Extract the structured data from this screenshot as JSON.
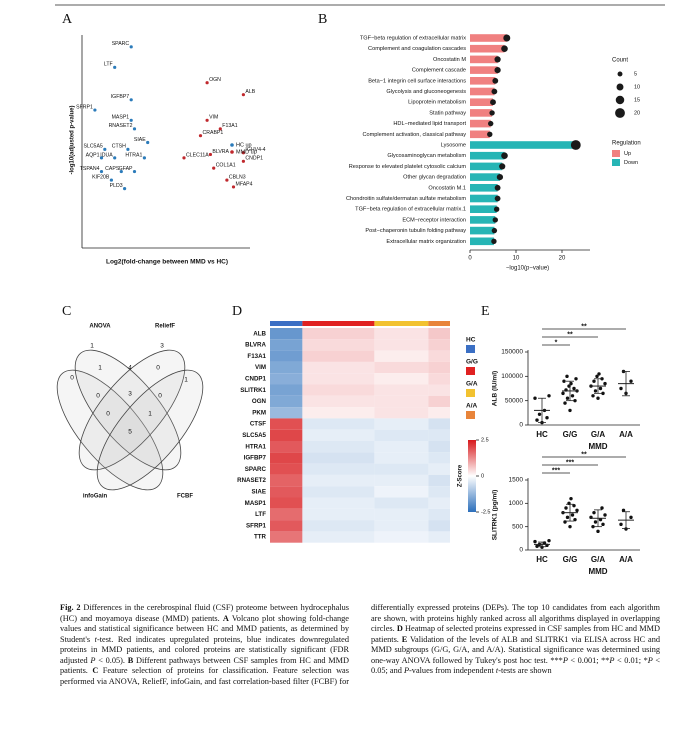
{
  "panel_a": {
    "letter": "A",
    "type": "scatter",
    "ylabel": "-log10(adjusted p-value)",
    "xlabel": "Log2(fold-change between MMD vs HC)",
    "xlim": [
      -2.5,
      2.5
    ],
    "ylim": [
      0,
      12
    ],
    "series": [
      {
        "name": "HC up",
        "color": "#2b7bba",
        "labels": [
          "SPARC",
          "LTF",
          "IGFBP7",
          "SFRP1",
          "MASP1",
          "RNASET2",
          "SIAE",
          "SLC5A5",
          "CTSH",
          "AQP1",
          "IDUA",
          "HTRA1",
          "TSPAN4",
          "CAPS",
          "GFAP",
          "KIF20B",
          "PLD3"
        ],
        "x": [
          -1.1,
          -1.6,
          -1.1,
          -2.2,
          -1.1,
          -1.0,
          -0.6,
          -1.9,
          -1.2,
          -2.0,
          -1.6,
          -0.7,
          -2.0,
          -1.4,
          -1.0,
          -1.7,
          -1.3
        ],
        "values": [
          11.6,
          10.4,
          8.5,
          7.9,
          7.3,
          6.8,
          6.0,
          5.6,
          5.6,
          5.1,
          5.1,
          5.1,
          4.3,
          4.3,
          4.3,
          3.8,
          3.3
        ]
      },
      {
        "name": "MMD up",
        "color": "#c0282d",
        "labels": [
          "OGN",
          "ALB",
          "VIM",
          "F13A1",
          "CRABP1",
          "CLEC11A",
          "BLVRA",
          "IGHV4-4",
          "CNDP1",
          "COL1A1",
          "CBLN3",
          "MFAP4"
        ],
        "x": [
          1.2,
          2.3,
          1.2,
          1.6,
          1.0,
          0.5,
          1.3,
          2.3,
          2.3,
          1.4,
          1.8,
          2.0
        ],
        "values": [
          9.5,
          8.8,
          7.3,
          6.8,
          6.4,
          5.1,
          5.3,
          5.4,
          4.9,
          4.5,
          3.8,
          3.4
        ]
      }
    ]
  },
  "panel_b": {
    "letter": "B",
    "type": "bar",
    "xlabel": "−log10(p−value)",
    "xlim": [
      0,
      25
    ],
    "xticks": [
      0,
      10,
      20
    ],
    "count_title": "Count",
    "count_ticks": [
      5,
      10,
      15,
      20
    ],
    "legend_title": "Regulation",
    "series": [
      {
        "name": "Up",
        "color": "#f08080",
        "categories": [
          "TGF−beta regulation of extracellular matrix",
          "Complement and coagulation cascades",
          "Oncostatin M",
          "Complement cascade",
          "Beta−1 integrin cell surface interactions",
          "Glycolysis and gluconeogenesis",
          "Lipoprotein metabolism",
          "Statin pathway",
          "HDL−mediated lipid transport",
          "Complement activation, classical pathway"
        ],
        "values": [
          8,
          7.5,
          6,
          6,
          5.5,
          5.3,
          5,
          4.8,
          4.5,
          4.3
        ],
        "counts": [
          10,
          9,
          8,
          8,
          7,
          7,
          7,
          6,
          6,
          6
        ]
      },
      {
        "name": "Down",
        "color": "#26b5b5",
        "categories": [
          "Lysosome",
          "Glycosaminoglycan metabolism",
          "Response to elevated platelet cytosolic calcium",
          "Other glycan degradation",
          "Oncostatin M.1",
          "Chondroitin sulfate/dermatan sulfate metabolism",
          "TGF−beta regulation of extracellular matrix.1",
          "ECM−receptor interaction",
          "Post−chaperonin tubulin folding pathway",
          "Extracellular matrix organization"
        ],
        "values": [
          23,
          7.5,
          7,
          6.5,
          6,
          6,
          5.8,
          5.5,
          5.3,
          5.2
        ],
        "counts": [
          20,
          9,
          8,
          8,
          7,
          7,
          6,
          6,
          6,
          6
        ]
      }
    ]
  },
  "panel_c": {
    "letter": "C",
    "sets": [
      "ANOVA",
      "ReliefF",
      "infoGain",
      "FCBF"
    ],
    "regions": [
      1,
      3,
      0,
      1,
      4,
      0,
      1,
      0,
      3,
      0,
      0,
      1,
      5
    ]
  },
  "panel_d": {
    "letter": "D",
    "type": "heatmap",
    "rows": [
      "ALB",
      "BLVRA",
      "F13A1",
      "VIM",
      "CNDP1",
      "SLITRK1",
      "OGN",
      "PKM",
      "CTSF",
      "SLC5A5",
      "HTRA1",
      "IGFBP7",
      "SPARC",
      "RNASET2",
      "SIAE",
      "MASP1",
      "LTF",
      "SFRP1",
      "TTR"
    ],
    "groups": [
      {
        "name": "HC",
        "color": "#3b6fc4"
      },
      {
        "name": "G/G",
        "color": "#e02121"
      },
      {
        "name": "G/A",
        "color": "#f2c230"
      },
      {
        "name": "A/A",
        "color": "#e8843a"
      }
    ],
    "values": [
      [
        -1.8,
        0.5,
        0.3,
        0.6
      ],
      [
        -1.6,
        0.4,
        0.3,
        0.5
      ],
      [
        -1.7,
        0.5,
        0.2,
        0.4
      ],
      [
        -1.5,
        0.3,
        0.4,
        0.5
      ],
      [
        -1.4,
        0.3,
        0.2,
        0.4
      ],
      [
        -1.6,
        0.4,
        0.3,
        0.3
      ],
      [
        -1.5,
        0.3,
        0.3,
        0.5
      ],
      [
        -1.2,
        0.2,
        0.3,
        0.2
      ],
      [
        1.9,
        -0.4,
        -0.3,
        -0.5
      ],
      [
        2.0,
        -0.3,
        -0.4,
        -0.4
      ],
      [
        1.8,
        -0.4,
        -0.3,
        -0.5
      ],
      [
        2.0,
        -0.5,
        -0.3,
        -0.4
      ],
      [
        1.9,
        -0.4,
        -0.4,
        -0.3
      ],
      [
        1.7,
        -0.3,
        -0.3,
        -0.5
      ],
      [
        1.8,
        -0.4,
        -0.2,
        -0.4
      ],
      [
        1.9,
        -0.3,
        -0.4,
        -0.3
      ],
      [
        1.6,
        -0.3,
        -0.3,
        -0.4
      ],
      [
        1.8,
        -0.4,
        -0.3,
        -0.5
      ],
      [
        1.5,
        -0.3,
        -0.2,
        -0.3
      ]
    ],
    "colorbar": {
      "title": "Z-Score",
      "ticks": [
        2.5,
        0,
        -2.5
      ]
    }
  },
  "panel_e": {
    "letter": "E",
    "xlabel": "MMD",
    "categories": [
      "HC",
      "G/G",
      "G/A",
      "A/A"
    ],
    "charts": [
      {
        "type": "scatter",
        "ylabel": "ALB (IU/ml)",
        "ylim": [
          0,
          150000
        ],
        "yticks": [
          0,
          50000,
          100000,
          150000
        ],
        "values": [
          [
            5000,
            10000,
            15000,
            22000,
            30000,
            55000,
            60000
          ],
          [
            30000,
            45000,
            50000,
            55000,
            60000,
            65000,
            70000,
            72000,
            75000,
            80000,
            85000,
            90000,
            95000,
            100000
          ],
          [
            55000,
            60000,
            65000,
            70000,
            75000,
            80000,
            85000,
            90000,
            95000,
            100000,
            105000
          ],
          [
            65000,
            75000,
            90000,
            110000
          ]
        ],
        "means": [
          30000,
          70000,
          80000,
          85000
        ],
        "sd": [
          25000,
          20000,
          15000,
          25000
        ],
        "comparisons": [
          {
            "pair": [
              "HC",
              "G/G"
            ],
            "label": "*"
          },
          {
            "pair": [
              "HC",
              "G/A"
            ],
            "label": "**"
          },
          {
            "pair": [
              "HC",
              "A/A"
            ],
            "label": "**"
          }
        ]
      },
      {
        "type": "scatter",
        "ylabel": "SLITRK1 (pg/ml)",
        "ylim": [
          0,
          1500
        ],
        "yticks": [
          0,
          500,
          1000,
          1500
        ],
        "values": [
          [
            60,
            80,
            100,
            120,
            150,
            180,
            200
          ],
          [
            500,
            600,
            650,
            700,
            750,
            800,
            850,
            900,
            950,
            1000,
            1100
          ],
          [
            400,
            500,
            550,
            600,
            650,
            700,
            750,
            800,
            900
          ],
          [
            450,
            550,
            700,
            850
          ]
        ],
        "means": [
          120,
          800,
          680,
          640
        ],
        "sd": [
          50,
          180,
          180,
          180
        ],
        "comparisons": [
          {
            "pair": [
              "HC",
              "G/G"
            ],
            "label": "***"
          },
          {
            "pair": [
              "HC",
              "G/A"
            ],
            "label": "***"
          },
          {
            "pair": [
              "HC",
              "A/A"
            ],
            "label": "**"
          }
        ]
      }
    ]
  },
  "caption": {
    "runs": [
      {
        "text": "Fig. 2",
        "b": true
      },
      {
        "text": "  Differences in the cerebrospinal fluid (CSF) proteome between hydrocephalus (HC) and moyamoya disease (MMD) patients. "
      },
      {
        "text": "A",
        "b": true
      },
      {
        "text": " Volcano plot showing fold-change values and statistical significance between HC and MMD patients, as determined by Student's "
      },
      {
        "text": "t",
        "i": true
      },
      {
        "text": "-test. Red indicates upregulated proteins, blue indicates downregulated proteins in MMD patients, and colored proteins are statistically significant (FDR adjusted "
      },
      {
        "text": "P",
        "i": true
      },
      {
        "text": " < 0.05). "
      },
      {
        "text": "B",
        "b": true
      },
      {
        "text": " Different pathways between CSF samples from HC and MMD patients. "
      },
      {
        "text": "C",
        "b": true
      },
      {
        "text": " Feature selection of proteins for classification. Feature selection was performed via ANOVA, ReliefF, infoGain, and fast correlation-based filter (FCBF) for differentially expressed proteins (DEPs). The top 10 candidates from each algorithm are shown, with proteins highly ranked across all algorithms displayed in overlapping circles. "
      },
      {
        "text": "D",
        "b": true
      },
      {
        "text": " Heatmap of selected proteins expressed in CSF samples from HC and MMD patients. "
      },
      {
        "text": "E",
        "b": true
      },
      {
        "text": " Validation of the levels of ALB and SLITRK1 via ELISA across HC and MMD subgroups (G/G, G/A, and A/A). Statistical significance was determined using one-way ANOVA followed by Tukey's post hoc test. ***"
      },
      {
        "text": "P",
        "i": true
      },
      {
        "text": " < 0.001; **"
      },
      {
        "text": "P",
        "i": true
      },
      {
        "text": " < 0.01; *"
      },
      {
        "text": "P",
        "i": true
      },
      {
        "text": " < 0.05; and "
      },
      {
        "text": "P",
        "i": true
      },
      {
        "text": "-values from independent "
      },
      {
        "text": "t",
        "i": true
      },
      {
        "text": "-tests are shown"
      }
    ]
  }
}
